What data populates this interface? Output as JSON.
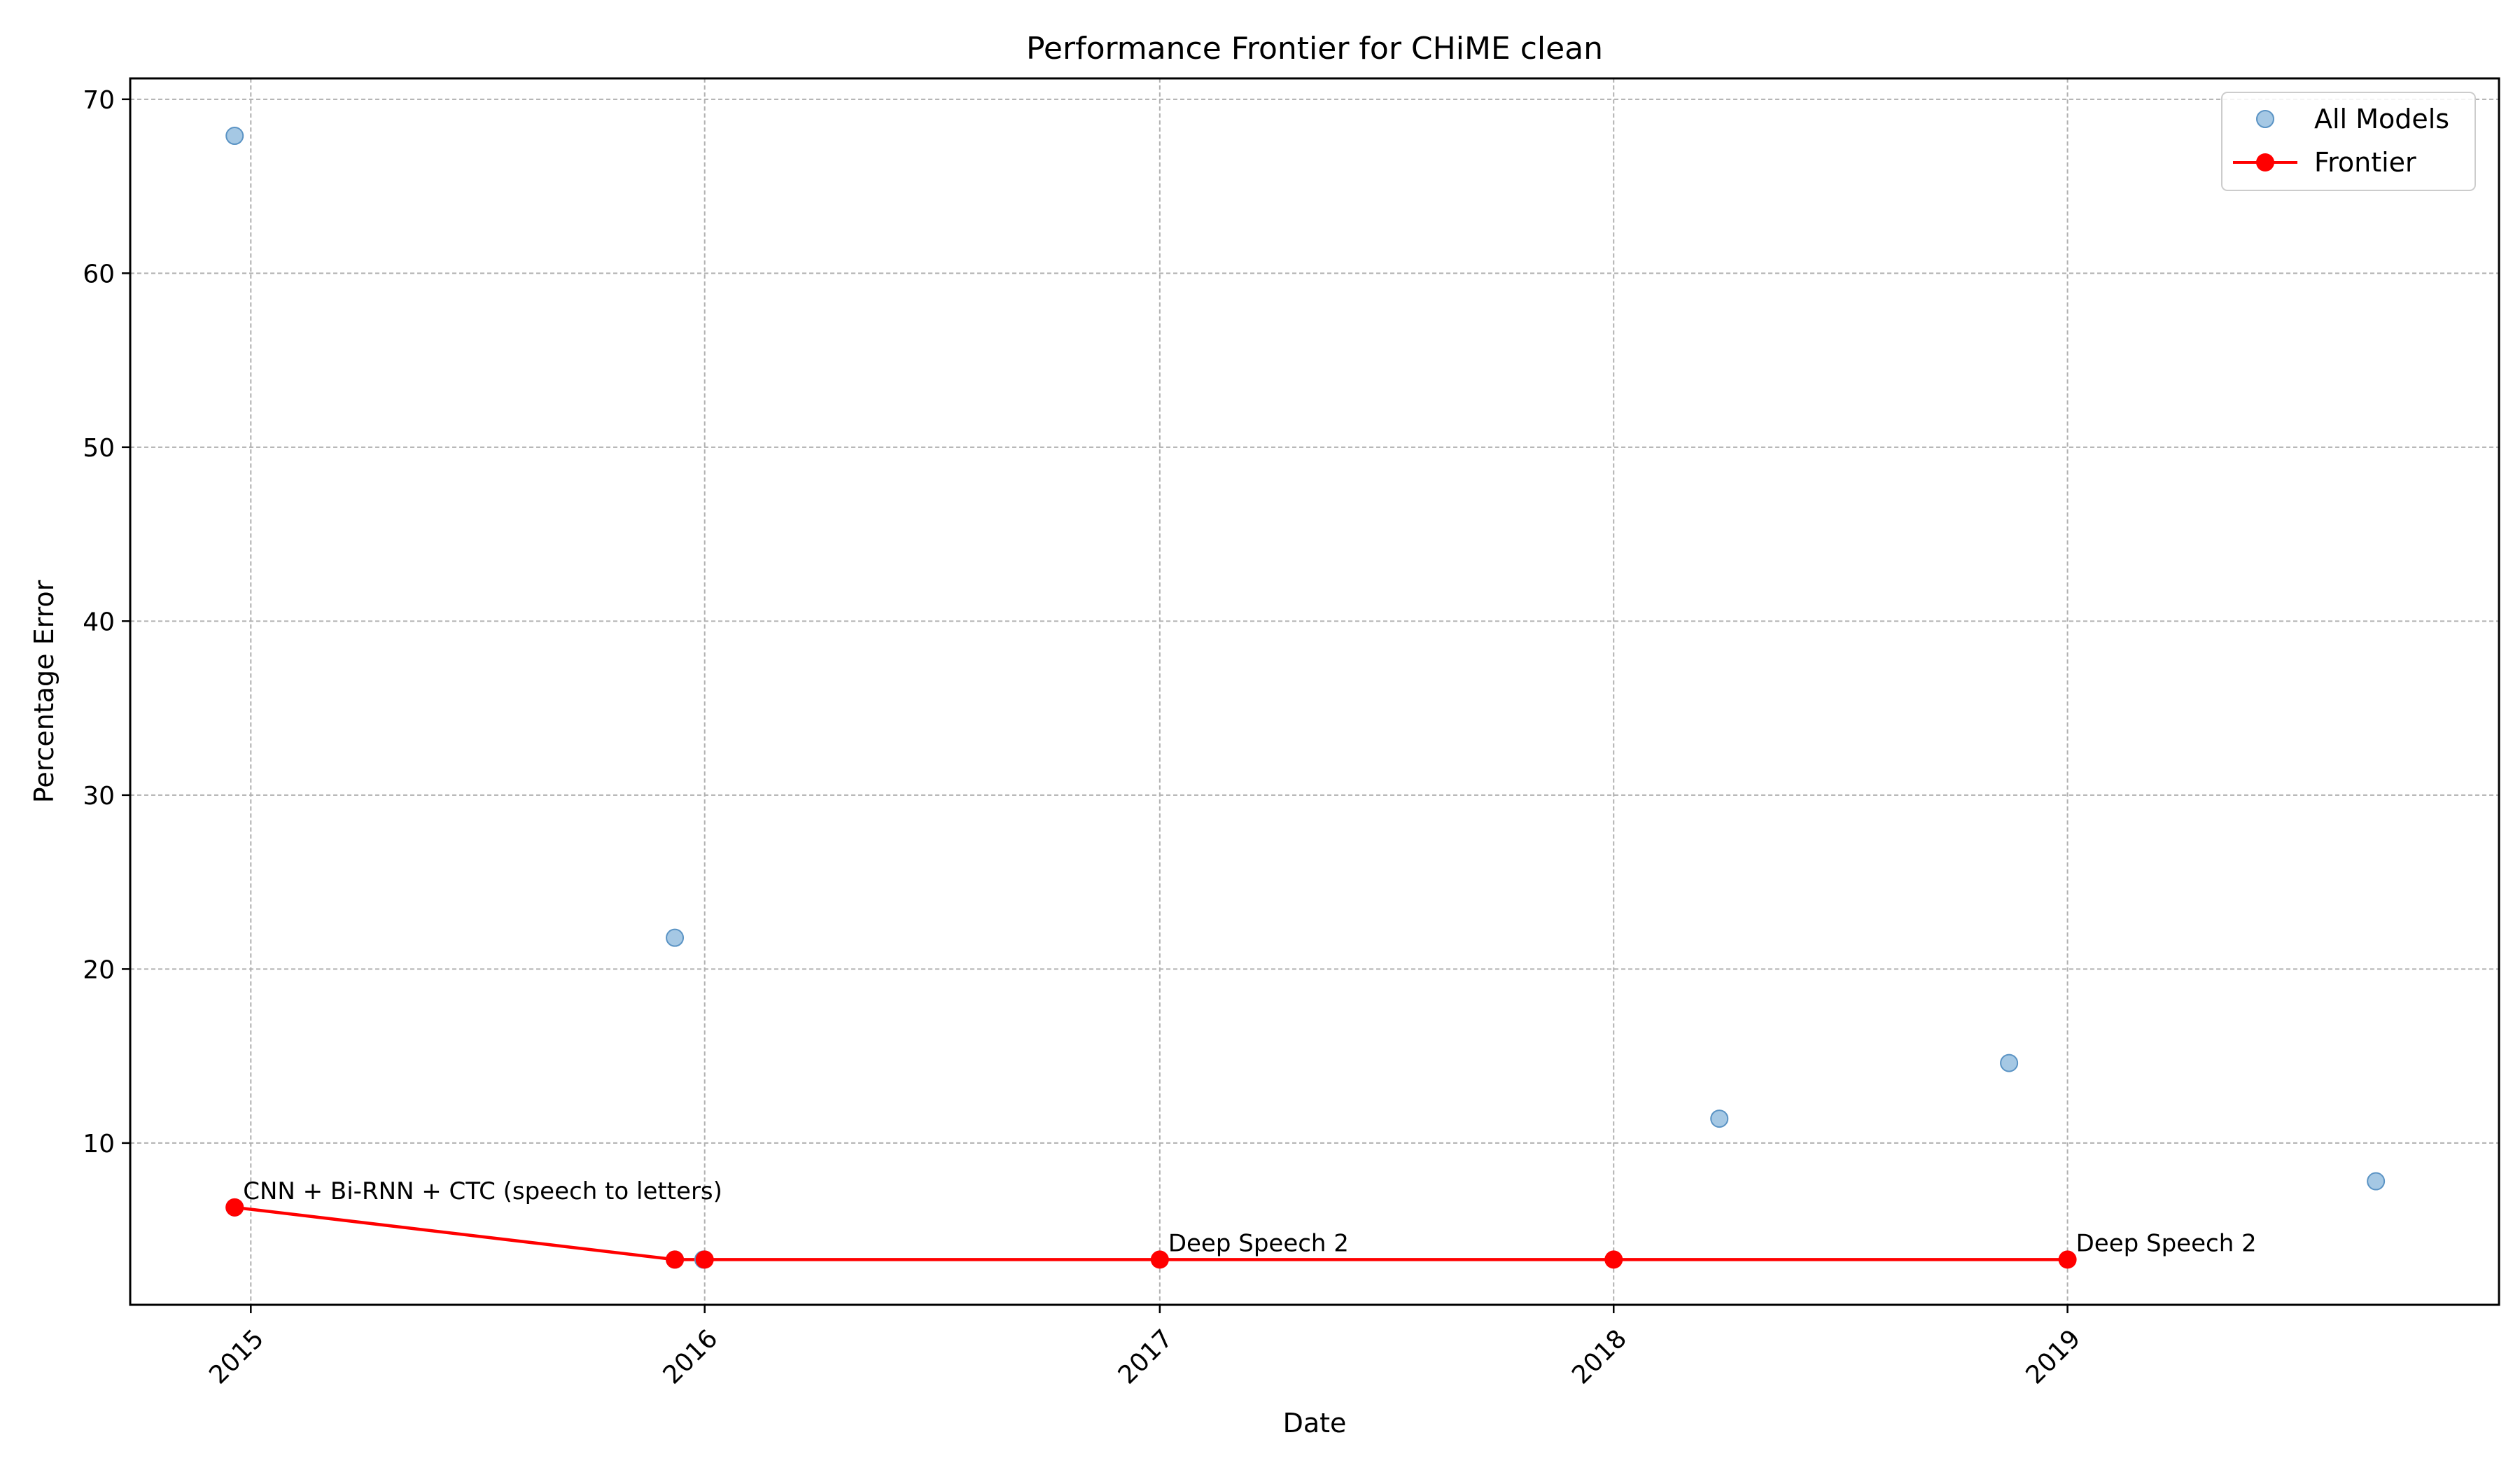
{
  "chart_data": {
    "type": "scatter",
    "title": "Performance Frontier for CHiME clean",
    "xlabel": "Date",
    "ylabel": "Percentage Error",
    "x_axis_type": "date",
    "xlim": [
      "2014-09-26",
      "2019-12-14"
    ],
    "ylim": [
      0.7,
      71.2
    ],
    "x_ticks": [
      "2015",
      "2016",
      "2017",
      "2018",
      "2019"
    ],
    "y_ticks": [
      10,
      20,
      30,
      40,
      50,
      60,
      70
    ],
    "grid": true,
    "legend_position": "top-right",
    "series": [
      {
        "name": "All Models",
        "kind": "scatter",
        "color": "#7fb0d8",
        "points": [
          {
            "x": "2014-12-19",
            "y": 67.9
          },
          {
            "x": "2014-12-19",
            "y": 6.3
          },
          {
            "x": "2015-12-08",
            "y": 21.8
          },
          {
            "x": "2015-12-08",
            "y": 3.3
          },
          {
            "x": "2015-12-31",
            "y": 3.3
          },
          {
            "x": "2018-03-27",
            "y": 11.4
          },
          {
            "x": "2018-11-15",
            "y": 14.6
          },
          {
            "x": "2019-09-06",
            "y": 7.8
          }
        ]
      },
      {
        "name": "Frontier",
        "kind": "line-marker",
        "color": "#ff0000",
        "points": [
          {
            "x": "2014-12-19",
            "y": 6.3
          },
          {
            "x": "2015-12-08",
            "y": 3.3
          },
          {
            "x": "2016-01-01",
            "y": 3.3
          },
          {
            "x": "2017-01-01",
            "y": 3.3
          },
          {
            "x": "2018-01-01",
            "y": 3.3
          },
          {
            "x": "2019-01-01",
            "y": 3.3
          }
        ]
      }
    ],
    "annotations": [
      {
        "x": "2014-12-19",
        "y": 6.3,
        "text": "CNN + Bi-RNN + CTC (speech to letters)"
      },
      {
        "x": "2017-01-01",
        "y": 3.3,
        "text": "Deep Speech 2"
      },
      {
        "x": "2019-01-01",
        "y": 3.3,
        "text": "Deep Speech 2"
      }
    ]
  }
}
